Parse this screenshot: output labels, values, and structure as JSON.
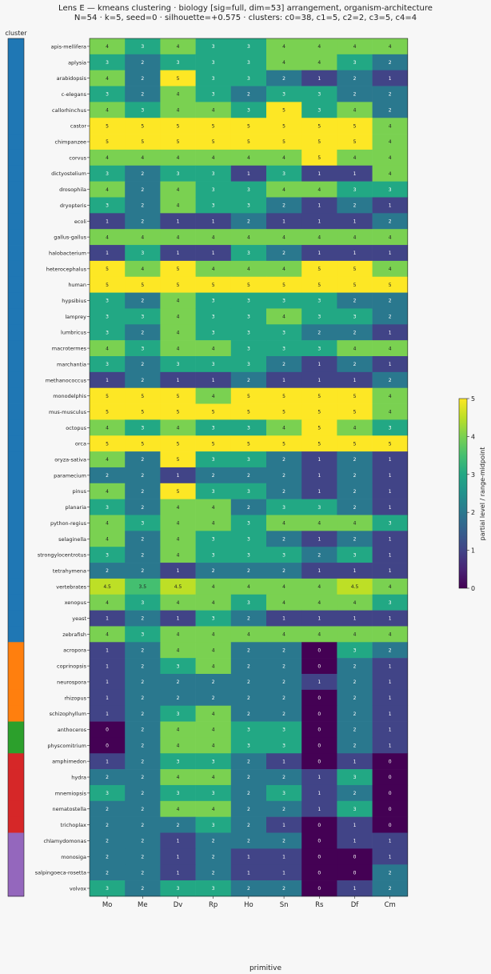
{
  "chart_data": {
    "type": "heatmap",
    "title": "Lens E — kmeans clustering · biology [sig=full, dim=53] arrangement, organism-architecture",
    "subtitle": "N=54 · k=5, seed=0 · silhouette=+0.575 · clusters: c0=38, c1=5, c2=2, c3=5, c4=4",
    "cluster_strip_label": "cluster",
    "xlabel": "primitive",
    "x": [
      "Mo",
      "Me",
      "Dv",
      "Rp",
      "Ho",
      "Sn",
      "Rs",
      "Df",
      "Cm"
    ],
    "colorbar": {
      "label": "partial level / range-midpoint",
      "min": 0,
      "max": 5,
      "ticks": [
        0,
        1,
        2,
        3,
        4,
        5
      ]
    },
    "cluster_colors": {
      "c0": "#1f77b4",
      "c1": "#ff7f0e",
      "c2": "#2ca02c",
      "c3": "#d62728",
      "c4": "#9467bd"
    },
    "rows": [
      {
        "name": "apis-mellifera",
        "cluster": "c0",
        "values": [
          4,
          3,
          4,
          3,
          3,
          4,
          4,
          4,
          4
        ]
      },
      {
        "name": "aplysia",
        "cluster": "c0",
        "values": [
          3,
          2,
          3,
          3,
          3,
          4,
          4,
          3,
          2
        ]
      },
      {
        "name": "arabidopsis",
        "cluster": "c0",
        "values": [
          4,
          2,
          5,
          3,
          3,
          2,
          1,
          2,
          1
        ]
      },
      {
        "name": "c-elegans",
        "cluster": "c0",
        "values": [
          3,
          2,
          4,
          3,
          2,
          3,
          3,
          2,
          2
        ]
      },
      {
        "name": "callorhinchus",
        "cluster": "c0",
        "values": [
          4,
          3,
          4,
          4,
          3,
          5,
          3,
          4,
          2
        ]
      },
      {
        "name": "castor",
        "cluster": "c0",
        "values": [
          5,
          5,
          5,
          5,
          5,
          5,
          5,
          5,
          4
        ]
      },
      {
        "name": "chimpanzee",
        "cluster": "c0",
        "values": [
          5,
          5,
          5,
          5,
          5,
          5,
          5,
          5,
          4
        ]
      },
      {
        "name": "corvus",
        "cluster": "c0",
        "values": [
          4,
          4,
          4,
          4,
          4,
          4,
          5,
          4,
          4
        ]
      },
      {
        "name": "dictyostelium",
        "cluster": "c0",
        "values": [
          3,
          2,
          3,
          3,
          1,
          3,
          1,
          1,
          4
        ]
      },
      {
        "name": "drosophila",
        "cluster": "c0",
        "values": [
          4,
          2,
          4,
          3,
          3,
          4,
          4,
          3,
          3
        ]
      },
      {
        "name": "dryopteris",
        "cluster": "c0",
        "values": [
          3,
          2,
          4,
          3,
          3,
          2,
          1,
          2,
          1
        ]
      },
      {
        "name": "ecoli",
        "cluster": "c0",
        "values": [
          1,
          2,
          1,
          1,
          2,
          1,
          1,
          1,
          2
        ]
      },
      {
        "name": "gallus-gallus",
        "cluster": "c0",
        "values": [
          4,
          4,
          4,
          4,
          4,
          4,
          4,
          4,
          4
        ]
      },
      {
        "name": "halobacterium",
        "cluster": "c0",
        "values": [
          1,
          3,
          1,
          1,
          3,
          2,
          1,
          1,
          1
        ]
      },
      {
        "name": "heterocephalus",
        "cluster": "c0",
        "values": [
          5,
          4,
          5,
          4,
          4,
          4,
          5,
          5,
          4
        ]
      },
      {
        "name": "human",
        "cluster": "c0",
        "values": [
          5,
          5,
          5,
          5,
          5,
          5,
          5,
          5,
          5
        ]
      },
      {
        "name": "hypsibius",
        "cluster": "c0",
        "values": [
          3,
          2,
          4,
          3,
          3,
          3,
          3,
          2,
          2
        ]
      },
      {
        "name": "lamprey",
        "cluster": "c0",
        "values": [
          3,
          3,
          4,
          3,
          3,
          4,
          3,
          3,
          2
        ]
      },
      {
        "name": "lumbricus",
        "cluster": "c0",
        "values": [
          3,
          2,
          4,
          3,
          3,
          3,
          2,
          2,
          1
        ]
      },
      {
        "name": "macrotermes",
        "cluster": "c0",
        "values": [
          4,
          3,
          4,
          4,
          3,
          3,
          3,
          4,
          4
        ]
      },
      {
        "name": "marchantia",
        "cluster": "c0",
        "values": [
          3,
          2,
          3,
          3,
          3,
          2,
          1,
          2,
          1
        ]
      },
      {
        "name": "methanococcus",
        "cluster": "c0",
        "values": [
          1,
          2,
          1,
          1,
          2,
          1,
          1,
          1,
          2
        ]
      },
      {
        "name": "monodelphis",
        "cluster": "c0",
        "values": [
          5,
          5,
          5,
          4,
          5,
          5,
          5,
          5,
          4
        ]
      },
      {
        "name": "mus-musculus",
        "cluster": "c0",
        "values": [
          5,
          5,
          5,
          5,
          5,
          5,
          5,
          5,
          4
        ]
      },
      {
        "name": "octopus",
        "cluster": "c0",
        "values": [
          4,
          3,
          4,
          3,
          3,
          4,
          5,
          4,
          3
        ]
      },
      {
        "name": "orca",
        "cluster": "c0",
        "values": [
          5,
          5,
          5,
          5,
          5,
          5,
          5,
          5,
          5
        ]
      },
      {
        "name": "oryza-sativa",
        "cluster": "c0",
        "values": [
          4,
          2,
          5,
          3,
          3,
          2,
          1,
          2,
          1
        ]
      },
      {
        "name": "paramecium",
        "cluster": "c0",
        "values": [
          2,
          2,
          1,
          2,
          2,
          2,
          1,
          2,
          1
        ]
      },
      {
        "name": "pinus",
        "cluster": "c0",
        "values": [
          4,
          2,
          5,
          3,
          3,
          2,
          1,
          2,
          1
        ]
      },
      {
        "name": "planaria",
        "cluster": "c0",
        "values": [
          3,
          2,
          4,
          4,
          2,
          3,
          3,
          2,
          1
        ]
      },
      {
        "name": "python-regius",
        "cluster": "c0",
        "values": [
          4,
          3,
          4,
          4,
          3,
          4,
          4,
          4,
          3
        ]
      },
      {
        "name": "selaginella",
        "cluster": "c0",
        "values": [
          4,
          2,
          4,
          3,
          3,
          2,
          1,
          2,
          1
        ]
      },
      {
        "name": "strongylocentrotus",
        "cluster": "c0",
        "values": [
          3,
          2,
          4,
          3,
          3,
          3,
          2,
          3,
          1
        ]
      },
      {
        "name": "tetrahymena",
        "cluster": "c0",
        "values": [
          2,
          2,
          1,
          2,
          2,
          2,
          1,
          1,
          1
        ]
      },
      {
        "name": "vertebrates",
        "cluster": "c0",
        "values": [
          4.5,
          3.5,
          4.5,
          4,
          4,
          4,
          4,
          4.5,
          4
        ]
      },
      {
        "name": "xenopus",
        "cluster": "c0",
        "values": [
          4,
          3,
          4,
          4,
          3,
          4,
          4,
          4,
          3
        ]
      },
      {
        "name": "yeast",
        "cluster": "c0",
        "values": [
          1,
          2,
          1,
          3,
          2,
          1,
          1,
          1,
          1
        ]
      },
      {
        "name": "zebrafish",
        "cluster": "c0",
        "values": [
          4,
          3,
          4,
          4,
          4,
          4,
          4,
          4,
          4
        ]
      },
      {
        "name": "acropora",
        "cluster": "c1",
        "values": [
          1,
          2,
          4,
          4,
          2,
          2,
          0,
          3,
          2
        ]
      },
      {
        "name": "coprinopsis",
        "cluster": "c1",
        "values": [
          1,
          2,
          3,
          4,
          2,
          2,
          0,
          2,
          1
        ]
      },
      {
        "name": "neurospora",
        "cluster": "c1",
        "values": [
          1,
          2,
          2,
          2,
          2,
          2,
          1,
          2,
          1
        ]
      },
      {
        "name": "rhizopus",
        "cluster": "c1",
        "values": [
          1,
          2,
          2,
          2,
          2,
          2,
          0,
          2,
          1
        ]
      },
      {
        "name": "schizophyllum",
        "cluster": "c1",
        "values": [
          1,
          2,
          3,
          4,
          2,
          2,
          0,
          2,
          1
        ]
      },
      {
        "name": "anthoceros",
        "cluster": "c2",
        "values": [
          0,
          2,
          4,
          4,
          3,
          3,
          0,
          2,
          1
        ]
      },
      {
        "name": "physcomitrium",
        "cluster": "c2",
        "values": [
          0,
          2,
          4,
          4,
          3,
          3,
          0,
          2,
          1
        ]
      },
      {
        "name": "amphimedon",
        "cluster": "c3",
        "values": [
          1,
          2,
          3,
          3,
          2,
          1,
          0,
          1,
          0
        ]
      },
      {
        "name": "hydra",
        "cluster": "c3",
        "values": [
          2,
          2,
          4,
          4,
          2,
          2,
          1,
          3,
          0
        ]
      },
      {
        "name": "mnemiopsis",
        "cluster": "c3",
        "values": [
          3,
          2,
          3,
          3,
          2,
          3,
          1,
          2,
          0
        ]
      },
      {
        "name": "nematostella",
        "cluster": "c3",
        "values": [
          2,
          2,
          4,
          4,
          2,
          2,
          1,
          3,
          0
        ]
      },
      {
        "name": "trichoplax",
        "cluster": "c3",
        "values": [
          2,
          2,
          2,
          3,
          2,
          1,
          0,
          1,
          0
        ]
      },
      {
        "name": "chlamydomonas",
        "cluster": "c4",
        "values": [
          2,
          2,
          1,
          2,
          2,
          2,
          0,
          1,
          1
        ]
      },
      {
        "name": "monosiga",
        "cluster": "c4",
        "values": [
          2,
          2,
          1,
          2,
          1,
          1,
          0,
          0,
          1
        ]
      },
      {
        "name": "salpingoeca-rosetta",
        "cluster": "c4",
        "values": [
          2,
          2,
          1,
          2,
          1,
          1,
          0,
          0,
          2
        ]
      },
      {
        "name": "volvox",
        "cluster": "c4",
        "values": [
          3,
          2,
          3,
          3,
          2,
          2,
          0,
          1,
          2
        ]
      }
    ]
  }
}
